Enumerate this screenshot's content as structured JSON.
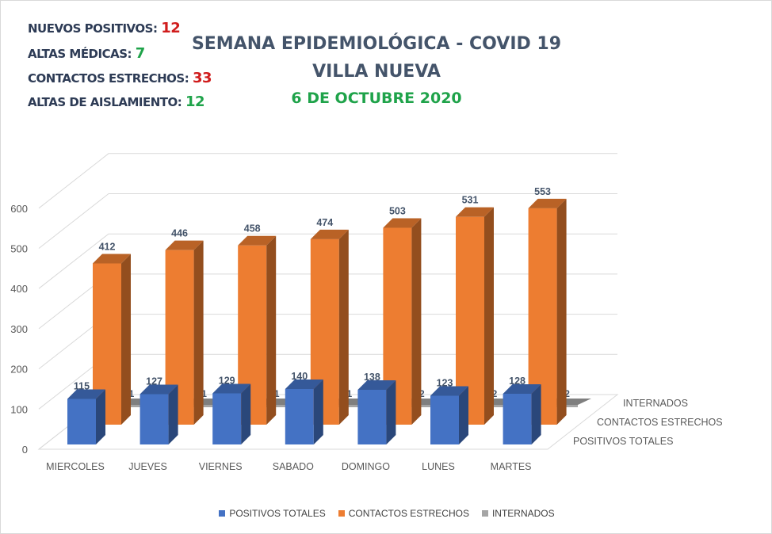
{
  "stats": [
    {
      "label": "NUEVOS POSITIVOS:",
      "value": "12",
      "color": "#d01c1c"
    },
    {
      "label": "ALTAS MÉDICAS:",
      "value": "7",
      "color": "#1fa34a"
    },
    {
      "label": "CONTACTOS ESTRECHOS:",
      "value": "33",
      "color": "#d01c1c"
    },
    {
      "label": "ALTAS DE AISLAMIENTO:",
      "value": "12",
      "color": "#1fa34a"
    }
  ],
  "chart_data": {
    "type": "bar",
    "title": "SEMANA EPIDEMIOLÓGICA - COVID 19",
    "subtitle": "VILLA NUEVA",
    "date": "6 DE OCTUBRE 2020",
    "categories": [
      "MIERCOLES",
      "JUEVES",
      "VIERNES",
      "SABADO",
      "DOMINGO",
      "LUNES",
      "MARTES"
    ],
    "series": [
      {
        "name": "POSITIVOS TOTALES",
        "values": [
          115,
          127,
          129,
          140,
          138,
          123,
          128
        ],
        "color": "#4472c4"
      },
      {
        "name": "CONTACTOS ESTRECHOS",
        "values": [
          412,
          446,
          458,
          474,
          503,
          531,
          553
        ],
        "color": "#ed7d31"
      },
      {
        "name": "INTERNADOS",
        "values": [
          1,
          1,
          1,
          1,
          2,
          2,
          2
        ],
        "color": "#a5a5a5"
      }
    ],
    "yticks": [
      0,
      100,
      200,
      300,
      400,
      500,
      600
    ],
    "ylim": [
      0,
      600
    ],
    "grid": true,
    "legend": "bottom",
    "style": "3d-column"
  }
}
